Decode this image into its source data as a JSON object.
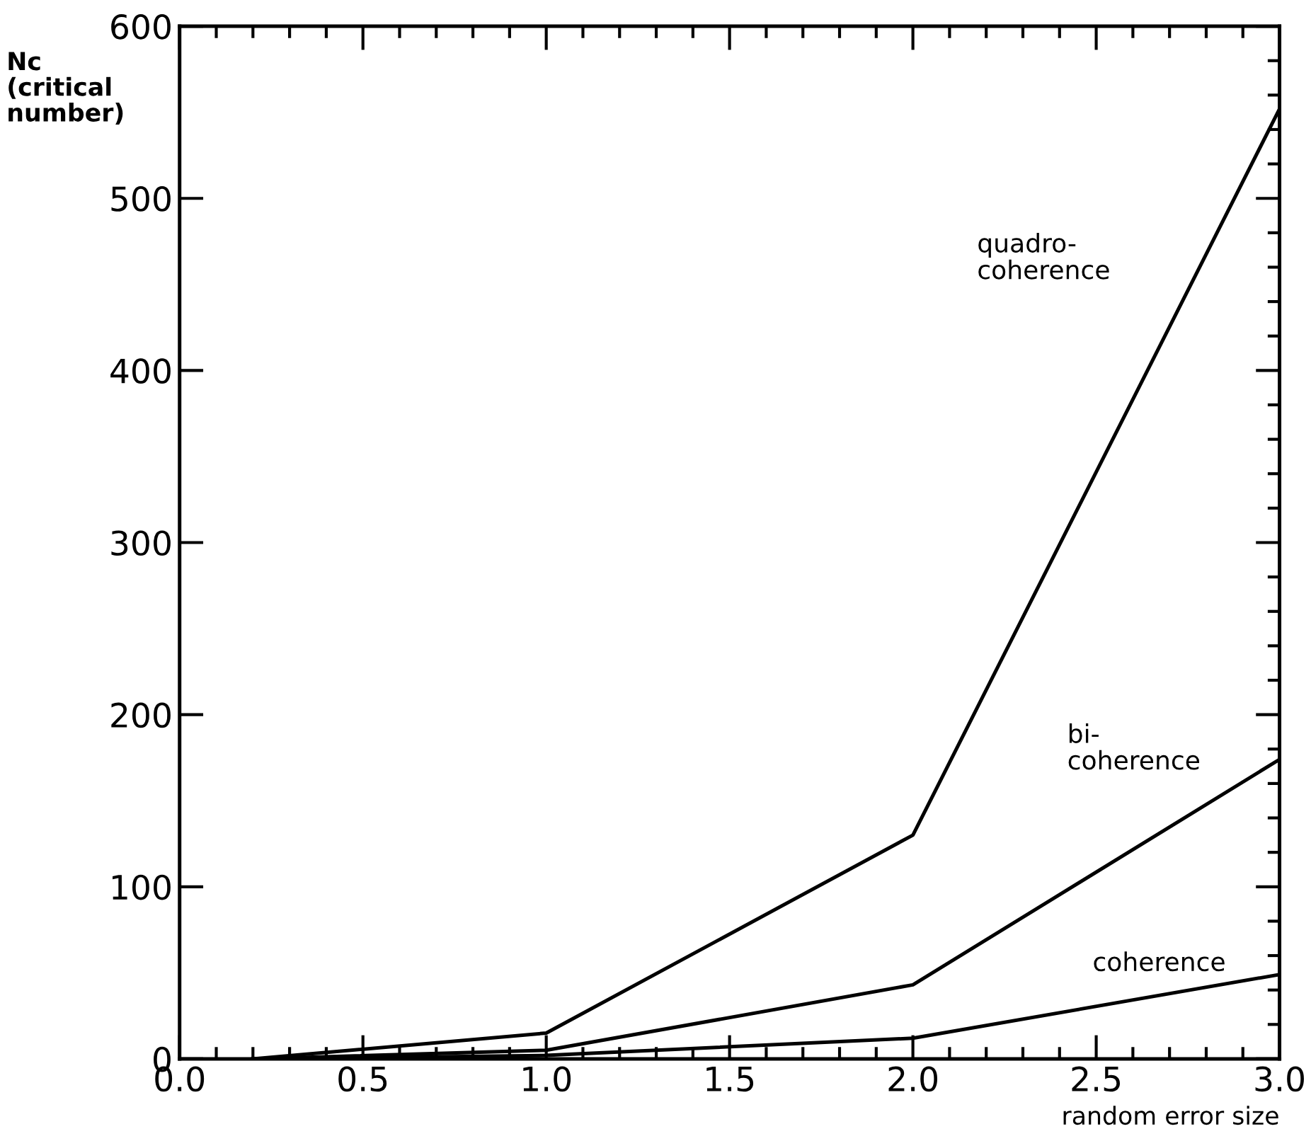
{
  "chart_data": {
    "type": "line",
    "xlabel": "random error size",
    "ylabel": "Nc\n(critical\nnumber)",
    "x": [
      0.2,
      1.0,
      2.0,
      3.0
    ],
    "series": [
      {
        "color": "#000000",
        "values": [
          0,
          15,
          130,
          552
        ]
      },
      {
        "color": "#000000",
        "values": [
          0,
          5,
          43,
          174
        ]
      },
      {
        "color": "#000000",
        "values": [
          0,
          2,
          12,
          49
        ]
      }
    ],
    "annotations": [
      "quadro-\ncoherence",
      "bi-\ncoherence",
      "coherence"
    ],
    "xlim": [
      0.0,
      3.0
    ],
    "xticks": [
      {
        "value": 0.0,
        "label": "0.0"
      },
      {
        "value": 0.5,
        "label": "0.5"
      },
      {
        "value": 1.0,
        "label": "1.0"
      },
      {
        "value": 1.5,
        "label": "1.5"
      },
      {
        "value": 2.0,
        "label": "2.0"
      },
      {
        "value": 2.5,
        "label": "2.5"
      },
      {
        "value": 3.0,
        "label": "3.0"
      }
    ],
    "ylim": [
      0,
      600
    ],
    "yticks": [
      0,
      100,
      200,
      300,
      400,
      500,
      600
    ],
    "grid": false,
    "legend": false,
    "marker": "none",
    "line_style": "solid"
  }
}
